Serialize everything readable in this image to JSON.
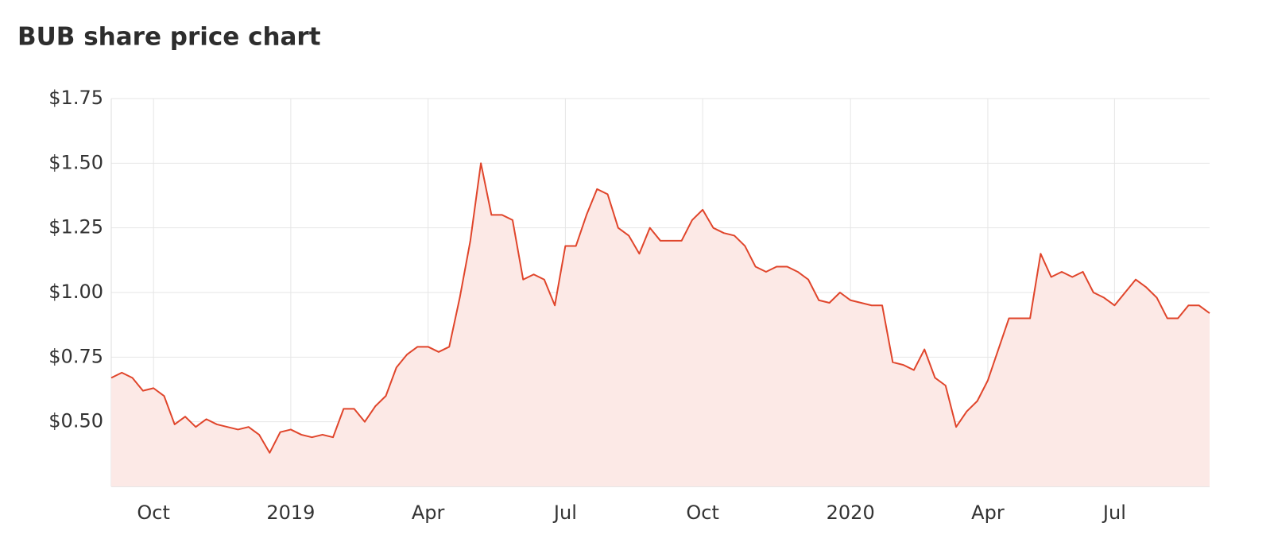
{
  "chart_data": {
    "type": "area",
    "title": "BUB share price chart",
    "categories": [
      null,
      null,
      null,
      null,
      "Oct",
      null,
      null,
      null,
      null,
      null,
      null,
      null,
      null,
      null,
      null,
      null,
      null,
      "2019",
      null,
      null,
      null,
      null,
      null,
      null,
      null,
      null,
      null,
      null,
      null,
      null,
      "Apr",
      null,
      null,
      null,
      null,
      null,
      null,
      null,
      null,
      null,
      null,
      null,
      null,
      "Jul",
      null,
      null,
      null,
      null,
      null,
      null,
      null,
      null,
      null,
      null,
      null,
      null,
      "Oct",
      null,
      null,
      null,
      null,
      null,
      null,
      null,
      null,
      null,
      null,
      null,
      null,
      null,
      "2020",
      null,
      null,
      null,
      null,
      null,
      null,
      null,
      null,
      null,
      null,
      null,
      null,
      "Apr",
      null,
      null,
      null,
      null,
      null,
      null,
      null,
      null,
      null,
      null,
      null,
      "Jul",
      null,
      null,
      null,
      null,
      null,
      null,
      null,
      null,
      null
    ],
    "values": [
      0.67,
      0.69,
      0.67,
      0.62,
      0.63,
      0.6,
      0.49,
      0.52,
      0.48,
      0.51,
      0.49,
      0.48,
      0.47,
      0.48,
      0.45,
      0.38,
      0.46,
      0.47,
      0.45,
      0.44,
      0.45,
      0.44,
      0.55,
      0.55,
      0.5,
      0.56,
      0.6,
      0.71,
      0.76,
      0.79,
      0.79,
      0.77,
      0.79,
      0.98,
      1.2,
      1.5,
      1.3,
      1.3,
      1.28,
      1.05,
      1.07,
      1.05,
      0.95,
      1.18,
      1.18,
      1.3,
      1.4,
      1.38,
      1.25,
      1.22,
      1.15,
      1.25,
      1.2,
      1.2,
      1.2,
      1.28,
      1.32,
      1.25,
      1.23,
      1.22,
      1.18,
      1.1,
      1.08,
      1.1,
      1.1,
      1.08,
      1.05,
      0.97,
      0.96,
      1.0,
      0.97,
      0.96,
      0.95,
      0.95,
      0.73,
      0.72,
      0.7,
      0.78,
      0.67,
      0.64,
      0.48,
      0.54,
      0.58,
      0.66,
      0.78,
      0.9,
      0.9,
      0.9,
      1.15,
      1.06,
      1.08,
      1.06,
      1.08,
      1.0,
      0.98,
      0.95,
      1.0,
      1.05,
      1.02,
      0.98,
      0.9,
      0.9,
      0.95,
      0.95,
      0.92
    ],
    "color": "#e0452b",
    "fill": "#fce9e6",
    "ylim": [
      0.25,
      1.75
    ],
    "yticks": [
      {
        "value": 0.5,
        "label": "$0.50"
      },
      {
        "value": 0.75,
        "label": "$0.75"
      },
      {
        "value": 1.0,
        "label": "$1.00"
      },
      {
        "value": 1.25,
        "label": "$1.25"
      },
      {
        "value": 1.5,
        "label": "$1.50"
      },
      {
        "value": 1.75,
        "label": "$1.75"
      }
    ],
    "grid": true
  }
}
